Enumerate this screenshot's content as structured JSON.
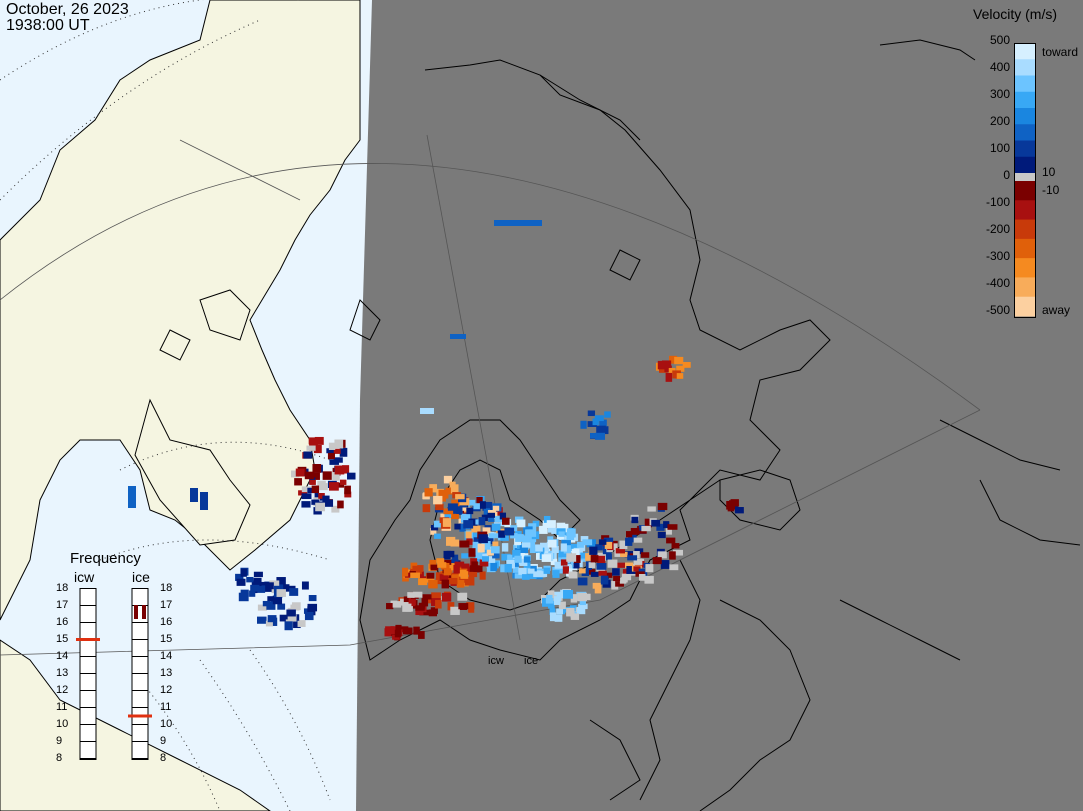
{
  "header": {
    "date": "October, 26 2023",
    "time": "1938:00 UT"
  },
  "colorbar": {
    "title": "Velocity (m/s)",
    "ticks_left": [
      "500",
      "400",
      "300",
      "200",
      "100",
      "0",
      "-100",
      "-200",
      "-300",
      "-400",
      "-500"
    ],
    "ticks_right": [
      "10",
      "-10"
    ],
    "toward_label": "toward",
    "away_label": "away",
    "colors_toward": [
      "#d6f0ff",
      "#a9dcff",
      "#6cc4ff",
      "#38a8f5",
      "#1a86e0",
      "#0f62c4",
      "#07389a",
      "#001a7a"
    ],
    "colors_away": [
      "#7a0000",
      "#a81010",
      "#c83a0a",
      "#e0600a",
      "#f58a20",
      "#f8ac5a",
      "#fcd0a0"
    ],
    "ground_scatter_color": "#c8c8c8"
  },
  "frequency": {
    "title": "Frequency",
    "channels": [
      {
        "name": "icw",
        "selected_mhz": 15
      },
      {
        "name": "ice",
        "selected_mhz": 10.5
      }
    ],
    "scale": [
      "18",
      "17",
      "16",
      "15",
      "14",
      "13",
      "12",
      "11",
      "10",
      "9",
      "8"
    ]
  },
  "radar_sites": [
    "icw",
    "ice"
  ],
  "colors": {
    "land": "#f5f5e1",
    "ocean": "#e9f5fe",
    "night": "#7a7a7a",
    "coast": "#000000"
  }
}
